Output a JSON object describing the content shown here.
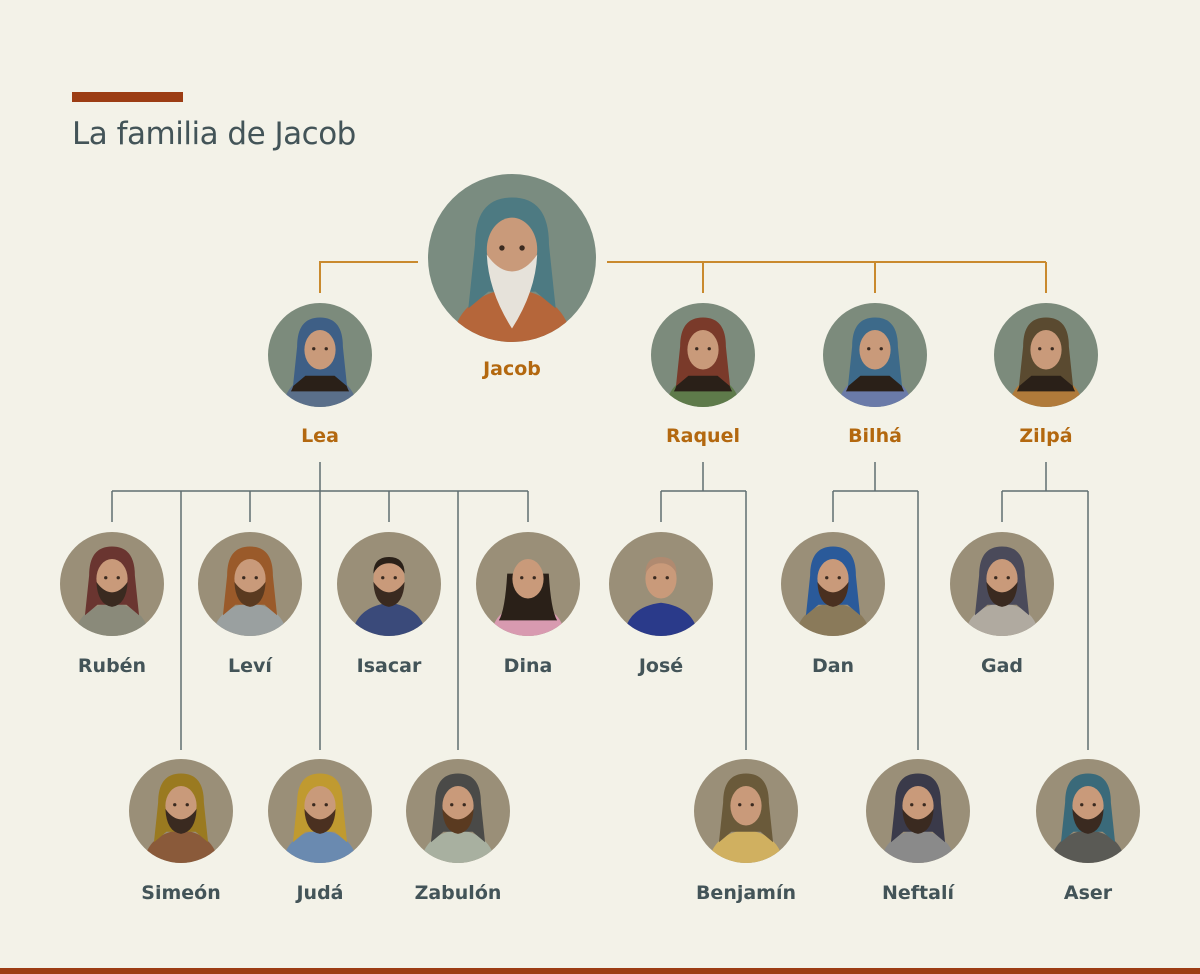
{
  "title": "La familia de Jacob",
  "colors": {
    "accent": "#9c3d14",
    "parent_line": "#c98a2e",
    "child_line": "#5f6e70",
    "parent_label": "#b3680f",
    "child_label": "#435458"
  },
  "jacob": {
    "name": "Jacob"
  },
  "wives": [
    {
      "name": "Lea",
      "children": [
        "Rubén",
        "Simeón",
        "Leví",
        "Judá",
        "Isacar",
        "Zabulón",
        "Dina"
      ]
    },
    {
      "name": "Raquel",
      "children": [
        "José",
        "Benjamín"
      ]
    },
    {
      "name": "Bilhá",
      "children": [
        "Dan",
        "Neftalí"
      ]
    },
    {
      "name": "Zilpá",
      "children": [
        "Gad",
        "Aser"
      ]
    }
  ]
}
